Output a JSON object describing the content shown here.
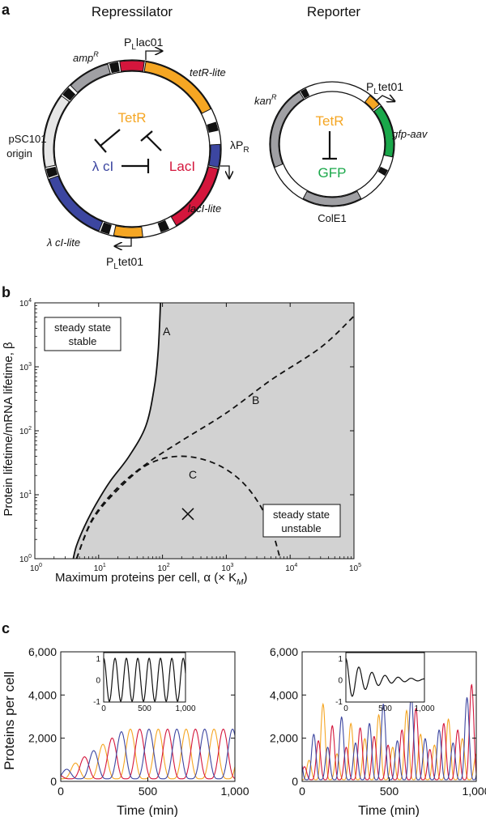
{
  "panel_a": {
    "letter": "a",
    "repressilator": {
      "title": "Repressilator",
      "genes": {
        "amp": "amp",
        "amp_sup": "R",
        "tetr": "tetR-lite",
        "laci": "lacI-lite",
        "lcl": "λ cI-lite",
        "origin1": "pSC101",
        "origin2": "origin"
      },
      "promoters": {
        "plac_p": "P",
        "plac_sub": "L",
        "plac_rest": "lac01",
        "ptet_p": "P",
        "ptet_sub": "L",
        "ptet_rest": "tet01",
        "lpr_pre": "λP",
        "lpr_sub": "R"
      },
      "proteins": {
        "tetr": "TetR",
        "laci": "LacI",
        "lcl": "λ cI"
      }
    },
    "reporter": {
      "title": "Reporter",
      "genes": {
        "kan": "kan",
        "kan_sup": "R",
        "gfp": "gfp-aav",
        "cole1": "ColE1"
      },
      "promoters": {
        "ptet_p": "P",
        "ptet_sub": "L",
        "ptet_rest": "tet01"
      },
      "proteins": {
        "tetr": "TetR",
        "gfp": "GFP"
      }
    },
    "colors": {
      "orange": "#f5a623",
      "red": "#d4163c",
      "blue": "#3c46a0",
      "green": "#1aa84a",
      "gray": "#a0a0a4",
      "light": "#e6e6e6"
    }
  },
  "panel_b": {
    "letter": "b",
    "xlabel": "Maximum proteins per cell, α (× K",
    "xlabel_sub": "M",
    "xlabel_end": ")",
    "ylabel": "Protein lifetime/mRNA lifetime, β",
    "stable_label": [
      "steady state",
      "stable"
    ],
    "unstable_label": [
      "steady state",
      "unstable"
    ],
    "curve_labels": {
      "a": "A",
      "b": "B",
      "c": "C"
    },
    "xticks": [
      {
        "base": "10",
        "exp": "0"
      },
      {
        "base": "10",
        "exp": "1"
      },
      {
        "base": "10",
        "exp": "2"
      },
      {
        "base": "10",
        "exp": "3"
      },
      {
        "base": "10",
        "exp": "4"
      },
      {
        "base": "10",
        "exp": "5"
      }
    ],
    "yticks": [
      {
        "base": "10",
        "exp": "0"
      },
      {
        "base": "10",
        "exp": "1"
      },
      {
        "base": "10",
        "exp": "2"
      },
      {
        "base": "10",
        "exp": "3"
      },
      {
        "base": "10",
        "exp": "4"
      }
    ],
    "shade_color": "#d2d2d2"
  },
  "panel_c": {
    "letter": "c",
    "ylabel": "Proteins per cell",
    "xlabel": "Time (min)",
    "yticks": [
      "0",
      "2,000",
      "4,000",
      "6,000"
    ],
    "xticks": [
      "0",
      "500",
      "1,000"
    ],
    "inset_yticks": [
      "-1",
      "0",
      "1"
    ],
    "inset_xticks": [
      "0",
      "500",
      "1,000"
    ],
    "series_colors": [
      "#f5a623",
      "#d4163c",
      "#3c46a0"
    ]
  },
  "chart_data": [
    {
      "type": "line",
      "xlabel": "Maximum proteins per cell, α (× K_M)",
      "ylabel": "Protein lifetime/mRNA lifetime, β",
      "xscale": "log",
      "yscale": "log",
      "xlim": [
        1,
        100000
      ],
      "ylim": [
        1,
        10000
      ],
      "series": [
        {
          "name": "A",
          "style": "solid",
          "x": [
            4,
            4.5,
            6,
            9,
            15,
            30,
            55,
            75,
            85,
            90,
            93
          ],
          "y": [
            1,
            1.6,
            3.2,
            7,
            16,
            40,
            120,
            500,
            1600,
            4500,
            10000
          ]
        },
        {
          "name": "B",
          "style": "dashed",
          "x": [
            4.5,
            8,
            20,
            60,
            200,
            1000,
            5000,
            30000,
            100000
          ],
          "y": [
            1,
            4.2,
            13,
            32,
            70,
            190,
            620,
            2000,
            6200
          ]
        },
        {
          "name": "C",
          "style": "dashed",
          "x": [
            4.5,
            8,
            20,
            60,
            200,
            700,
            2000,
            4500,
            7000
          ],
          "y": [
            1,
            4,
            12,
            30,
            40,
            30,
            14,
            4,
            1
          ]
        }
      ],
      "marker": {
        "label": "×",
        "x": 250,
        "y": 5
      }
    },
    {
      "type": "line",
      "ylabel": "Proteins per cell",
      "xlabel": "Time (min)",
      "xlim": [
        0,
        1000
      ],
      "ylim": [
        0,
        6000
      ],
      "period": 160,
      "amplitude": 2300,
      "series_colors": [
        "#f5a623",
        "#d4163c",
        "#3c46a0"
      ],
      "inset": {
        "xlim": [
          0,
          1000
        ],
        "ylim": [
          -1,
          1
        ],
        "behaviour": "sustained"
      }
    },
    {
      "type": "line",
      "ylabel": "Proteins per cell",
      "xlabel": "Time (min)",
      "xlim": [
        0,
        1000
      ],
      "ylim": [
        0,
        6000
      ],
      "behaviour": "noisy stochastic peaks up to about 4,500",
      "series_colors": [
        "#f5a623",
        "#d4163c",
        "#3c46a0"
      ],
      "inset": {
        "xlim": [
          0,
          1000
        ],
        "ylim": [
          -1,
          1
        ],
        "behaviour": "damped"
      }
    }
  ]
}
